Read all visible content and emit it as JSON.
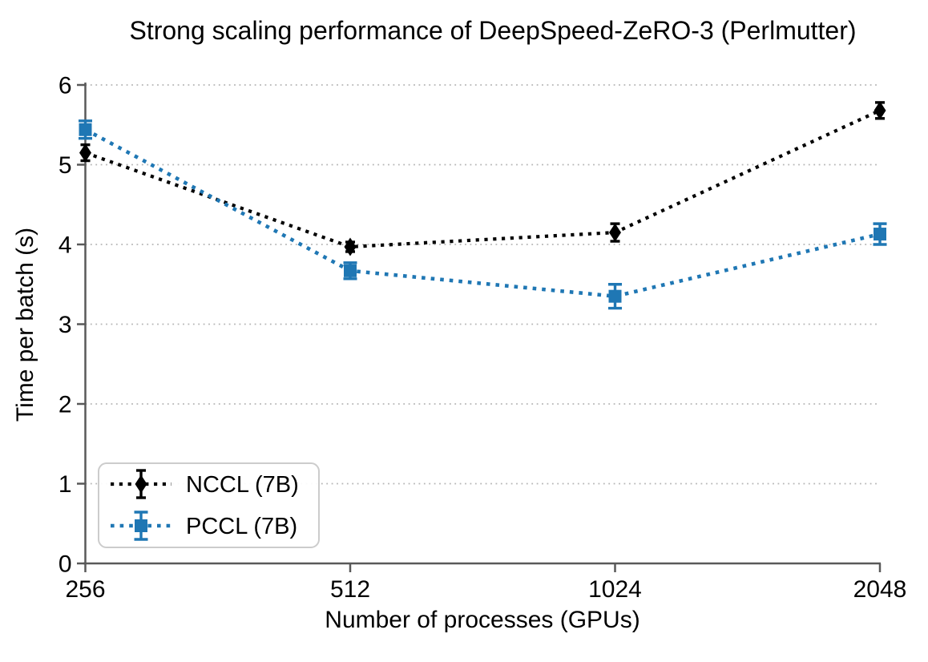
{
  "chart_data": {
    "type": "line",
    "title": "Strong scaling performance of DeepSpeed-ZeRO-3 (Perlmutter)",
    "xlabel": "Number of processes (GPUs)",
    "ylabel": "Time per batch (s)",
    "x": [
      256,
      512,
      1024,
      2048
    ],
    "x_tick_labels": [
      "256",
      "512",
      "1024",
      "2048"
    ],
    "x_scale": "log2-equal-spacing",
    "ylim": [
      0,
      6
    ],
    "yticks": [
      0,
      1,
      2,
      3,
      4,
      5,
      6
    ],
    "grid": {
      "axis": "y",
      "style": "dotted"
    },
    "legend": {
      "position": "lower-left"
    },
    "series": [
      {
        "name": "NCCL (7B)",
        "color": "#000000",
        "marker": "diamond",
        "linestyle": "dotted",
        "values": [
          5.15,
          3.97,
          4.15,
          5.68
        ],
        "yerr": [
          0.1,
          0.06,
          0.11,
          0.1
        ]
      },
      {
        "name": "PCCL (7B)",
        "color": "#1f77b4",
        "marker": "square",
        "linestyle": "dotted",
        "values": [
          5.44,
          3.67,
          3.35,
          4.13
        ],
        "yerr": [
          0.11,
          0.1,
          0.15,
          0.13
        ]
      }
    ],
    "colors": {
      "axis": "#595959",
      "grid": "#b5b5b5",
      "text": "#000000"
    }
  }
}
